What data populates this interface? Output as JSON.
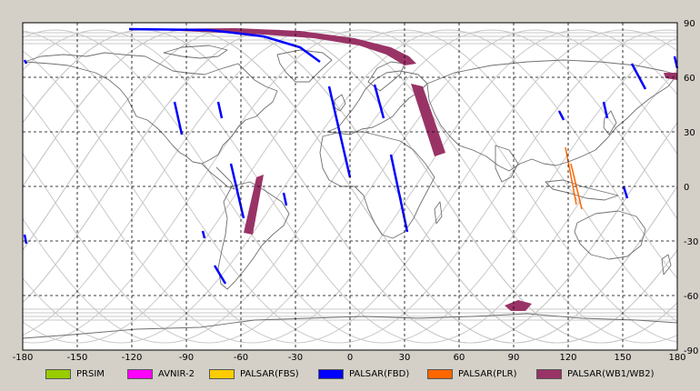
{
  "map": {
    "lon_ticks": [
      "-180",
      "-150",
      "-120",
      "-90",
      "-60",
      "-30",
      "0",
      "30",
      "60",
      "90",
      "120",
      "150",
      "180"
    ],
    "lat_ticks": [
      "90",
      "60",
      "30",
      "0",
      "-30",
      "-60",
      "-90"
    ],
    "colors": {
      "background": "#ffffff",
      "frame": "#000000",
      "coast": "#707070",
      "orbit": "#c8c8c8",
      "grid": "#000000"
    }
  },
  "legend": [
    {
      "label": "PRSIM",
      "color": "#99cc00"
    },
    {
      "label": "AVNIR-2",
      "color": "#ff00ff"
    },
    {
      "label": "PALSAR(FBS)",
      "color": "#ffcc00"
    },
    {
      "label": "PALSAR(FBD)",
      "color": "#0000ff"
    },
    {
      "label": "PALSAR(PLR)",
      "color": "#ff6600"
    },
    {
      "label": "PALSAR(WB1/WB2)",
      "color": "#993366"
    }
  ]
}
